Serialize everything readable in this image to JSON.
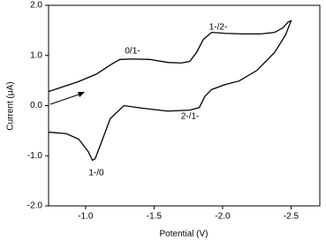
{
  "chart_data": {
    "type": "line",
    "x_label": "Potential (V)",
    "y_label": "Current (μA)",
    "xlim": [
      -0.73,
      -2.71
    ],
    "ylim": [
      -2.0,
      2.0
    ],
    "xticks": [
      {
        "value": -1.0,
        "label": "-1.0"
      },
      {
        "value": -1.5,
        "label": "-1.5"
      },
      {
        "value": -2.0,
        "label": "-2.0"
      },
      {
        "value": -2.5,
        "label": "-2.5"
      }
    ],
    "yticks": [
      {
        "value": -2.0,
        "label": "-2.0"
      },
      {
        "value": -1.0,
        "label": "-1.0"
      },
      {
        "value": 0.0,
        "label": "0.0"
      },
      {
        "value": 1.0,
        "label": "1.0"
      },
      {
        "value": 2.0,
        "label": "2.0"
      }
    ],
    "annotations": [
      "0/1-",
      "1-/2-",
      "2-/1-",
      "1-/0"
    ],
    "series": [
      {
        "color": "#000000",
        "x": [
          -0.73,
          -0.95,
          -1.08,
          -1.18,
          -1.25,
          -1.34,
          -1.47,
          -1.6,
          -1.7,
          -1.76,
          -1.81,
          -1.86,
          -1.92,
          -2.02,
          -2.15,
          -2.28,
          -2.38,
          -2.44,
          -2.48,
          -2.5,
          -2.46,
          -2.38,
          -2.25,
          -2.12,
          -2.02,
          -1.92,
          -1.87,
          -1.83,
          -1.76,
          -1.6,
          -1.41,
          -1.28,
          -1.18,
          -1.12,
          -1.07,
          -1.05,
          -1.02,
          -0.95,
          -0.86,
          -0.73
        ],
        "values": [
          0.28,
          0.48,
          0.63,
          0.81,
          0.92,
          0.93,
          0.92,
          0.86,
          0.85,
          0.88,
          1.06,
          1.32,
          1.46,
          1.44,
          1.43,
          1.43,
          1.46,
          1.55,
          1.67,
          1.69,
          1.41,
          1.06,
          0.7,
          0.49,
          0.42,
          0.32,
          0.18,
          -0.04,
          -0.09,
          -0.11,
          -0.05,
          0.0,
          -0.26,
          -0.7,
          -1.06,
          -1.09,
          -0.92,
          -0.67,
          -0.56,
          -0.53
        ]
      }
    ]
  }
}
